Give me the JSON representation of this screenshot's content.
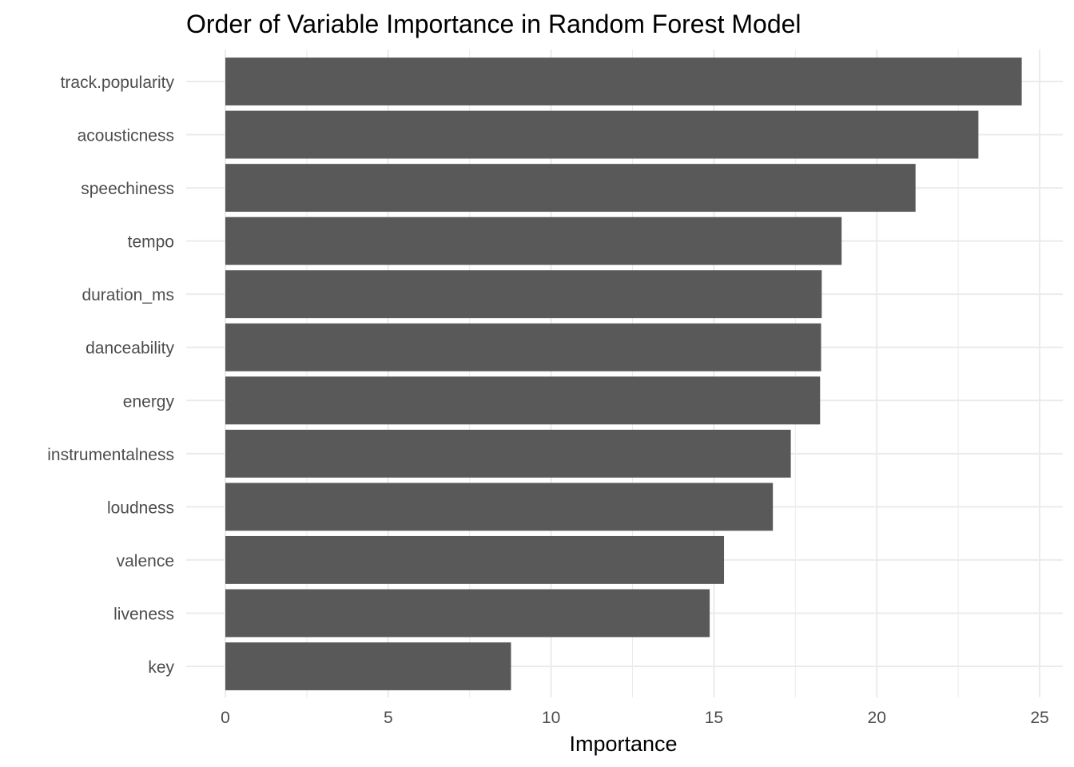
{
  "chart_data": {
    "type": "bar",
    "orientation": "horizontal",
    "title": "Order of Variable Importance in Random Forest Model",
    "xlabel": "Importance",
    "ylabel": "",
    "xlim": [
      0,
      25
    ],
    "x_ticks": [
      0,
      5,
      10,
      15,
      20,
      25
    ],
    "x_tick_labels": [
      "0",
      "5",
      "10",
      "15",
      "20",
      "25"
    ],
    "grid": true,
    "legend": "none",
    "categories": [
      "track.popularity",
      "acousticness",
      "speechiness",
      "tempo",
      "duration_ms",
      "danceability",
      "energy",
      "instrumentalness",
      "loudness",
      "valence",
      "liveness",
      "key"
    ],
    "values": [
      24.45,
      23.12,
      21.19,
      18.92,
      18.31,
      18.29,
      18.26,
      17.36,
      16.81,
      15.31,
      14.87,
      8.77
    ],
    "colors": {
      "bar": "#595959",
      "grid": "#ebebeb",
      "tick_text": "#4d4d4d",
      "title_text": "#000000"
    }
  }
}
